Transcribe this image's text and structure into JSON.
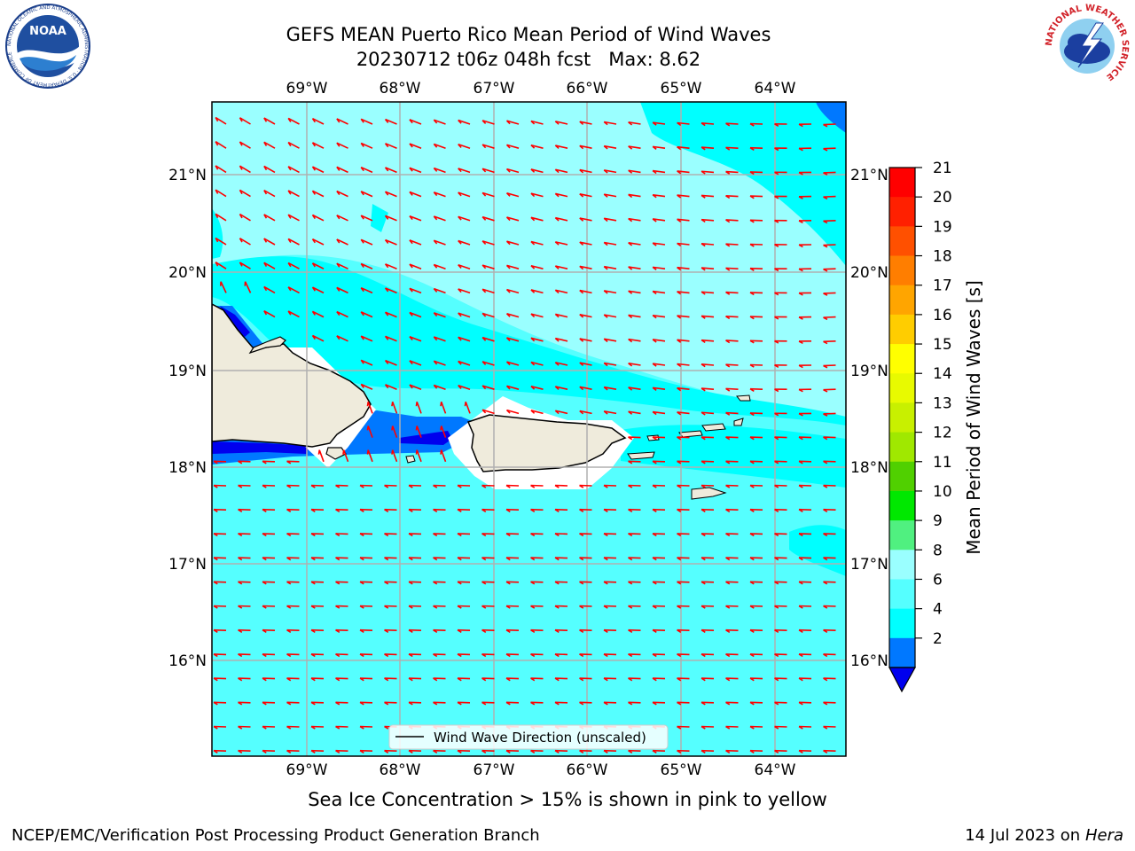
{
  "header": {
    "title_line1": "GEFS MEAN Puerto Rico Mean Period of Wind Waves",
    "title_line2": "20230712 t06z 048h fcst   Max: 8.62"
  },
  "logos": {
    "noaa_text": "NOAA",
    "noaa_ring": "NATIONAL OCEANIC AND ATMOSPHERIC ADMINISTRATION · U.S. DEPARTMENT OF COMMERCE",
    "nws_ring": "NATIONAL WEATHER SERVICE"
  },
  "map": {
    "lon_ticks": [
      "69°W",
      "68°W",
      "67°W",
      "66°W",
      "65°W",
      "64°W"
    ],
    "lat_ticks": [
      "21°N",
      "20°N",
      "19°N",
      "18°N",
      "17°N",
      "16°N"
    ],
    "legend_label": "Wind Wave Direction (unscaled)",
    "arrow_color": "#ff0000",
    "land_color": "#efebdc"
  },
  "colorbar": {
    "label": "Mean Period of Wind Waves [s]",
    "ticks": [
      "21",
      "20",
      "19",
      "18",
      "17",
      "16",
      "15",
      "14",
      "13",
      "12",
      "11",
      "10",
      "9",
      "8",
      "6",
      "4",
      "2"
    ],
    "colors": [
      "#ff0000",
      "#ff2000",
      "#ff5000",
      "#ff7e00",
      "#ffa500",
      "#ffcd00",
      "#ffff00",
      "#e8fa00",
      "#c8f000",
      "#a0e800",
      "#50d000",
      "#00e800",
      "#50f080",
      "#9affff",
      "#55ffff",
      "#00ffff",
      "#0078ff"
    ],
    "under_color": "#0000ee"
  },
  "caption": "Sea Ice Concentration > 15% is shown in pink to yellow",
  "footer": {
    "left": "NCEP/EMC/Verification Post Processing Product Generation Branch",
    "right_date": "14 Jul 2023 on ",
    "right_host": "Hera"
  }
}
